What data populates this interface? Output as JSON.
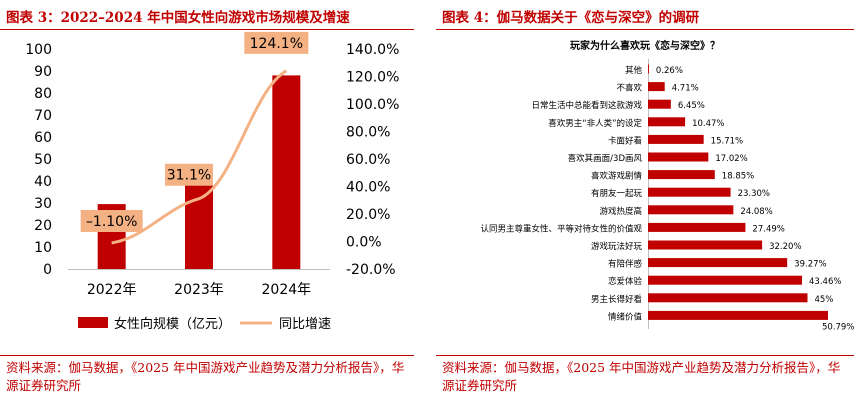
{
  "left": {
    "fig_title": "图表 3：2022–2024 年中国女性向游戏市场规模及增速",
    "source": "资料来源：伽马数据，《2025 年中国游戏产业趋势及潜力分析报告》，华源证券研究所"
  },
  "right": {
    "fig_title": "图表 4：伽马数据关于《恋与深空》的调研",
    "source": "资料来源：伽马数据，《2025 年中国游戏产业趋势及潜力分析报告》，华源证券研究所"
  },
  "chart_data": [
    {
      "type": "bar+line",
      "categories": [
        "2022年",
        "2023年",
        "2024年"
      ],
      "series": [
        {
          "name": "女性向规模（亿元）",
          "type": "bar",
          "axis": "left",
          "values": [
            29.5,
            38,
            88
          ],
          "color": "#c00000"
        },
        {
          "name": "同比增速",
          "type": "line",
          "axis": "right",
          "values": [
            -1.1,
            31.1,
            124.1
          ],
          "labels": [
            "–1.10%",
            "31.1%",
            "124.1%"
          ],
          "color": "#f4b183"
        }
      ],
      "ylim_left": [
        0,
        100
      ],
      "yticks_left": [
        "0",
        "10",
        "20",
        "30",
        "40",
        "50",
        "60",
        "70",
        "80",
        "90",
        "100"
      ],
      "ylim_right": [
        -20,
        140
      ],
      "yticks_right": [
        "-20.0%",
        "0.0%",
        "20.0%",
        "40.0%",
        "60.0%",
        "80.0%",
        "100.0%",
        "120.0%",
        "140.0%"
      ],
      "legend_position": "bottom"
    },
    {
      "type": "bar",
      "orientation": "horizontal",
      "title": "玩家为什么喜欢玩《恋与深空》？",
      "categories": [
        "其他",
        "不喜欢",
        "日常生活中总能看到这款游戏",
        "喜欢男主“非人类”的设定",
        "卡面好看",
        "喜欢其画面/3D画风",
        "喜欢游戏剧情",
        "有朋友一起玩",
        "游戏热度高",
        "认同男主尊重女性、平等对待女性的价值观",
        "游戏玩法好玩",
        "有陪伴感",
        "恋爱体验",
        "男主长得好看",
        "情绪价值"
      ],
      "values": [
        0.26,
        4.71,
        6.45,
        10.47,
        15.71,
        17.02,
        18.85,
        23.3,
        24.08,
        27.49,
        32.2,
        39.27,
        43.46,
        45,
        50.79
      ],
      "labels": [
        "0.26%",
        "4.71%",
        "6.45%",
        "10.47%",
        "15.71%",
        "17.02%",
        "18.85%",
        "23.30%",
        "24.08%",
        "27.49%",
        "32.20%",
        "39.27%",
        "43.46%",
        "45%",
        "50.79%"
      ],
      "color": "#c00000"
    }
  ]
}
